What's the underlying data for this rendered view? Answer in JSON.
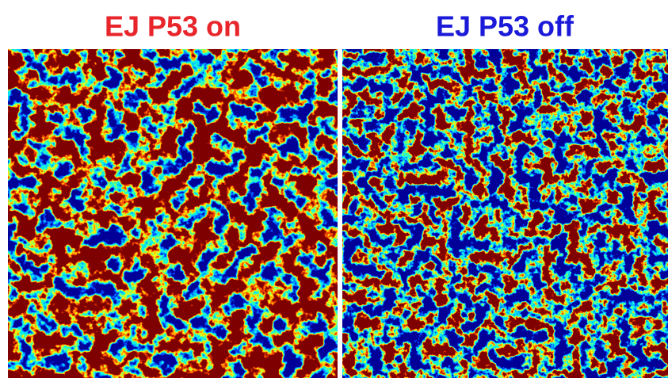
{
  "panels": [
    {
      "title": "EJ P53 on"
    },
    {
      "title": "EJ P53 off"
    }
  ]
}
